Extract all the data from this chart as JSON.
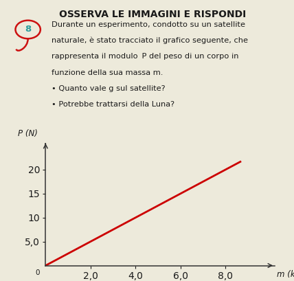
{
  "title": "OSSERVA LE IMMAGINI E RISPONDI",
  "question_number": "8",
  "q_line1": "Durante un esperimento, condotto su un satellite",
  "q_line2": "naturale, è stato tracciato il grafico seguente, che",
  "q_line3": "rappresenta il modulo ",
  "q_line3b": "P",
  "q_line3c": " del peso di un corpo in",
  "q_line4": "funzione della sua massa ",
  "q_line4b": "m",
  "q_line4c": ".",
  "bullet1": "• Quanto vale ",
  "bullet1b": "g",
  "bullet1c": " sul satellite?",
  "bullet2": "• Potrebbe trattarsi della Luna?",
  "xlabel": "m",
  "xlabel2": " (kg)",
  "ylabel": "P",
  "ylabel2": " (N)",
  "xlim": [
    0,
    10.2
  ],
  "ylim": [
    0,
    25.5
  ],
  "xticks": [
    2.0,
    4.0,
    6.0,
    8.0
  ],
  "yticks": [
    5.0,
    10,
    15,
    20
  ],
  "ytick_labels": [
    "5,0",
    "10",
    "15",
    "20"
  ],
  "xtick_labels": [
    "2,0",
    "4,0",
    "6,0",
    "8,0"
  ],
  "line_x": [
    0,
    8.7
  ],
  "line_y": [
    0,
    21.75
  ],
  "line_color": "#cc0000",
  "line_width": 2.0,
  "bg_color": "#edeadb",
  "text_color": "#1a1a1a",
  "number_color": "#2a9d9d",
  "circle_color": "#cc1111",
  "axis_color": "#333333",
  "tick_fontsize": 7.5,
  "label_fontsize": 8.5,
  "text_fontsize": 8.2,
  "title_fontsize": 10.0
}
